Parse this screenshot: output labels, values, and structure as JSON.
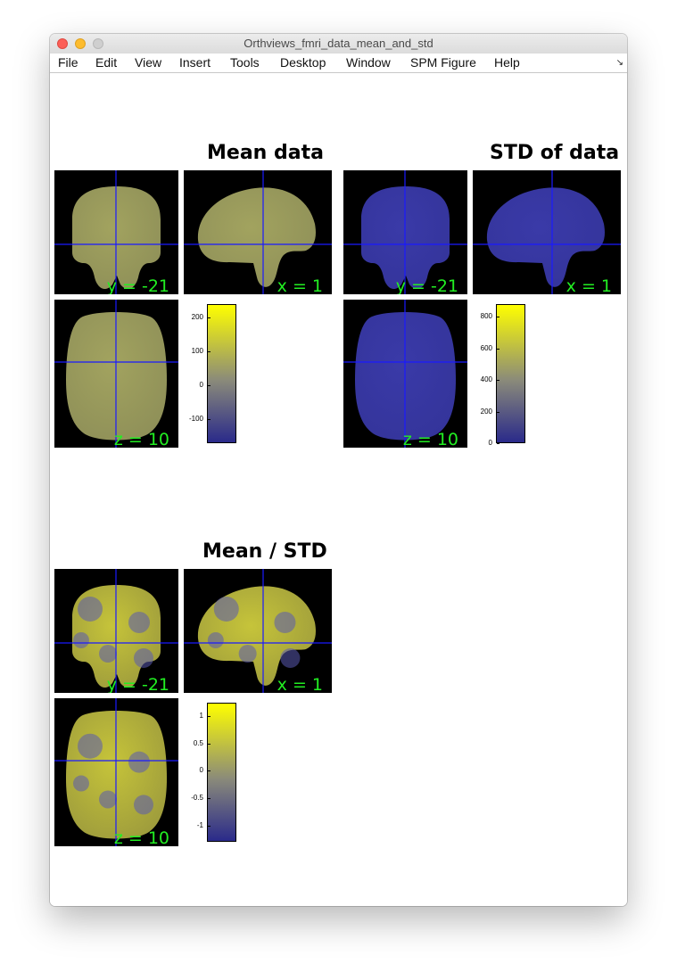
{
  "window": {
    "title": "Orthviews_fmri_data_mean_and_std"
  },
  "menu": {
    "items": [
      "File",
      "Edit",
      "View",
      "Insert",
      "Tools",
      "Desktop",
      "Window",
      "SPM Figure",
      "Help"
    ],
    "corner_glyph": "↘"
  },
  "panels": {
    "mean": {
      "title": "Mean data",
      "coronal_label": "y = -21",
      "sagittal_label": "x = 1",
      "axial_label": "z = 10",
      "colorbar_ticks": [
        "200",
        "100",
        "0",
        "-100"
      ],
      "colorbar_range": [
        -170,
        240
      ],
      "tint": "#a2a35f"
    },
    "std": {
      "title": "STD of data",
      "coronal_label": "y = -21",
      "sagittal_label": "x = 1",
      "axial_label": "z = 10",
      "colorbar_ticks": [
        "800",
        "600",
        "400",
        "200",
        "0"
      ],
      "colorbar_range": [
        0,
        880
      ],
      "tint": "#3a3aa8"
    },
    "ratio": {
      "title": "Mean / STD",
      "coronal_label": "y = -21",
      "sagittal_label": "x = 1",
      "axial_label": "z = 10",
      "colorbar_ticks": [
        "1",
        "0.5",
        "0",
        "-0.5",
        "-1"
      ],
      "colorbar_range": [
        -1.3,
        1.25
      ],
      "tint": "#c6c43a"
    }
  },
  "colors": {
    "crosshair": "#1a1aff",
    "coord_label": "#22ee22",
    "colormap_low": "#2a2a8a",
    "colormap_mid": "#8a8a7a",
    "colormap_high": "#ffff00"
  }
}
